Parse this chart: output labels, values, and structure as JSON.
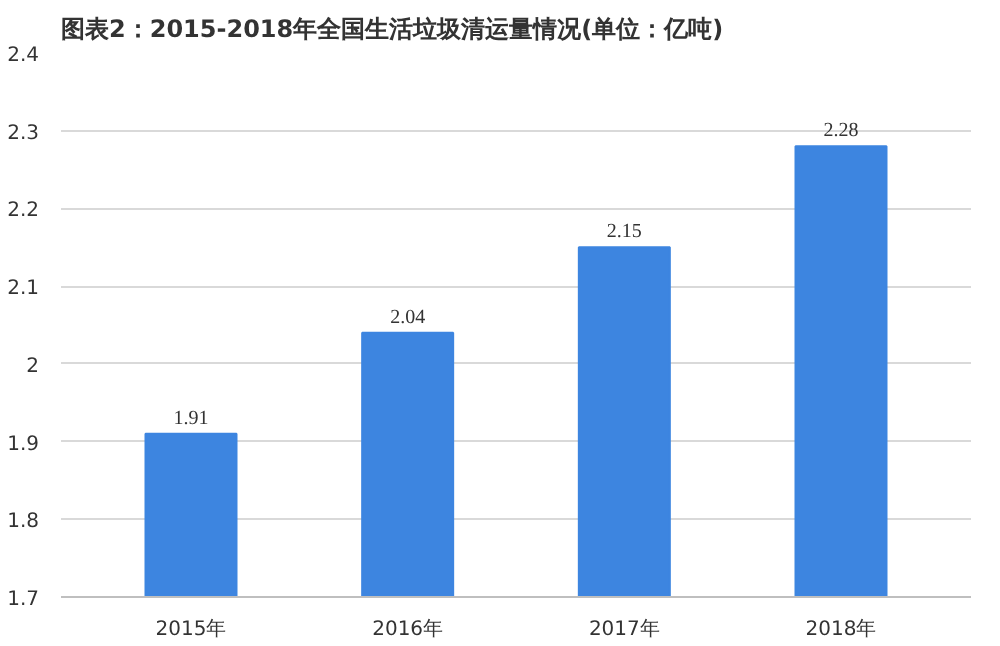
{
  "chart_data": {
    "type": "bar",
    "title": "图表2：2015-2018年全国生活垃圾清运量情况(单位：亿吨)",
    "categories": [
      "2015年",
      "2016年",
      "2017年",
      "2018年"
    ],
    "values": [
      1.91,
      2.04,
      2.15,
      2.28
    ],
    "color": "#3d85e0",
    "ylim": [
      1.7,
      2.4
    ],
    "yticks": [
      1.7,
      1.8,
      1.9,
      2,
      2.1,
      2.2,
      2.3,
      2.4
    ],
    "grid": "y",
    "data_labels": true
  }
}
